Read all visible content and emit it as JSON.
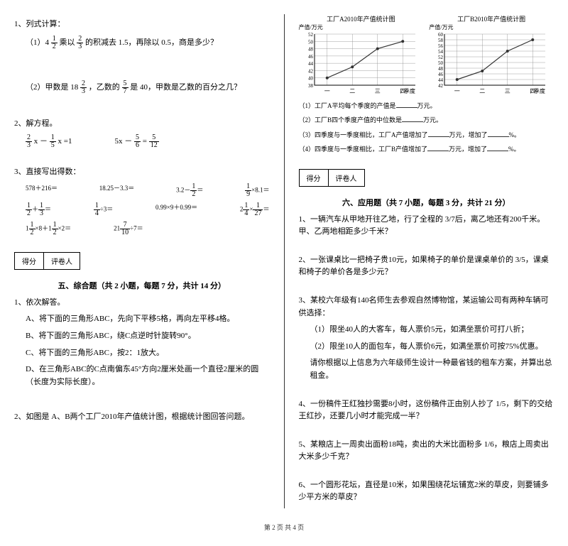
{
  "left": {
    "q1": {
      "title": "1、列式计算：",
      "a_pre": "（1）4",
      "a_frac1": {
        "n": "1",
        "d": "2"
      },
      "a_mid1": "乘以",
      "a_frac2": {
        "n": "2",
        "d": "3"
      },
      "a_post": "的积减去 1.5，再除以 0.5，商是多少？",
      "b_pre": "（2）甲数是 18",
      "b_frac1": {
        "n": "2",
        "d": "3"
      },
      "b_mid1": "，乙数的",
      "b_frac2": {
        "n": "5",
        "d": "7"
      },
      "b_post": "是 40，甲数是乙数的百分之几？"
    },
    "q2": {
      "title": "2、解方程。",
      "eq1_f1": {
        "n": "2",
        "d": "3"
      },
      "eq1_mid": " x － ",
      "eq1_f2": {
        "n": "1",
        "d": "5"
      },
      "eq1_post": " x =1",
      "eq2_pre": "5x － ",
      "eq2_f1": {
        "n": "5",
        "d": "6"
      },
      "eq2_mid": " = ",
      "eq2_f2": {
        "n": "5",
        "d": "12"
      }
    },
    "q3": {
      "title": "3、直接写出得数：",
      "items": [
        "578＋216＝",
        "18.25－3.3＝",
        "3.2－",
        "×8.1＝",
        " ＋ ",
        "÷3＝",
        "0.99×9＋0.99＝",
        "2 × ＝",
        "1 ×8＋1 ×2＝",
        "21 ÷7＝"
      ],
      "f_r1_a": {
        "n": "1",
        "d": "2"
      },
      "f_r1_b": {
        "n": "1",
        "d": "9"
      },
      "f_r2_a": {
        "n": "1",
        "d": "2"
      },
      "f_r2_b": {
        "n": "1",
        "d": "3"
      },
      "f_r2_c": {
        "n": "1",
        "d": "4"
      },
      "f_r2_d": {
        "n": "1",
        "d": "4"
      },
      "f_r2_e": {
        "n": "1",
        "d": "27"
      },
      "f_r3_a": {
        "n": "1",
        "d": "2"
      },
      "f_r3_b": {
        "n": "1",
        "d": "2"
      },
      "f_r3_c": {
        "n": "7",
        "d": "10"
      }
    },
    "sec5": {
      "score_a": "得分",
      "score_b": "评卷人",
      "heading": "五、综合题（共 2 小题，每题 7 分，共计 14 分）",
      "q1": "1、依次解答。",
      "q1a": "A、将下面的三角形ABC，先向下平移5格，再向左平移4格。",
      "q1b": "B、将下面的三角形ABC，绕C点逆时针旋转90°。",
      "q1c": "C、将下面的三角形ABC，按2：1放大。",
      "q1d": "D、在三角形ABC的C点南偏东45°方向2厘米处画一个直径2厘米的圆（长度为实际长度）。",
      "q2": "2、如图是 A、B两个工厂2010年产值统计图，根据统计图回答问题。"
    }
  },
  "right": {
    "chartA": {
      "title": "工厂A2010年产值统计图",
      "ylabel": "产值/万元",
      "yticks": [
        "38",
        "40",
        "42",
        "44",
        "46",
        "48",
        "50",
        "52"
      ],
      "xticks": [
        "一",
        "二",
        "三",
        "四"
      ],
      "xlabel": "季度",
      "points": [
        [
          0,
          40
        ],
        [
          1,
          43
        ],
        [
          2,
          48
        ],
        [
          3,
          50
        ]
      ],
      "line_color": "#333",
      "grid_color": "#888"
    },
    "chartB": {
      "title": "工厂B2010年产值统计图",
      "ylabel": "产值/万元",
      "yticks": [
        "42",
        "44",
        "46",
        "48",
        "50",
        "52",
        "54",
        "56",
        "58",
        "60"
      ],
      "xticks": [
        "一",
        "二",
        "三",
        "四"
      ],
      "xlabel": "季度",
      "points": [
        [
          0,
          44
        ],
        [
          1,
          47
        ],
        [
          2,
          54
        ],
        [
          3,
          58
        ]
      ],
      "line_color": "#333",
      "grid_color": "#888"
    },
    "stats": {
      "l1a": "（1）工厂A平均每个季度的产值是",
      "l1b": "万元。",
      "l2a": "（2）工厂B四个季度产值的中位数是",
      "l2b": "万元。",
      "l3a": "（3）四季度与一季度相比，工厂A产值增加了",
      "l3b": "万元，增加了",
      "l3c": "%。",
      "l4a": "（4）四季度与一季度相比，工厂B产值增加了",
      "l4b": "万元，增加了",
      "l4c": "%。"
    },
    "sec6": {
      "score_a": "得分",
      "score_b": "评卷人",
      "heading": "六、应用题（共 7 小题，每题 3 分，共计 21 分）",
      "q1": "1、一辆汽车从甲地开往乙地，行了全程的 3/7后，离乙地还有200千米。甲、乙两地相距多少千米？",
      "q2": "2、一张课桌比一把椅子贵10元，如果椅子的单价是课桌单价的 3/5，课桌和椅子的单价各是多少元？",
      "q3": "3、某校六年级有140名师生去参观自然博物馆，某运输公司有两种车辆可供选择：",
      "q3a": "（1）限坐40人的大客车，每人票价5元，如满坐票价可打八折；",
      "q3b": "（2）限坐10人的面包车，每人票价6元，如满坐票价可按75%优惠。",
      "q3c": "请你根据以上信息为六年级师生设计一种最省钱的租车方案，并算出总租金。",
      "q4": "4、一份稿件王红独抄需要8小时，这份稿件正由别人抄了 1/5，剩下的交给王红抄，还要几小时才能完成一半？",
      "q5": "5、某粮店上一周卖出面粉18吨，卖出的大米比面粉多 1/6，粮店上周卖出大米多少千克？",
      "q6": "6、一个圆形花坛，直径是10米，如果围绕花坛铺宽2米的草皮，则要铺多少平方米的草皮？"
    }
  },
  "footer": "第 2 页 共 4 页"
}
